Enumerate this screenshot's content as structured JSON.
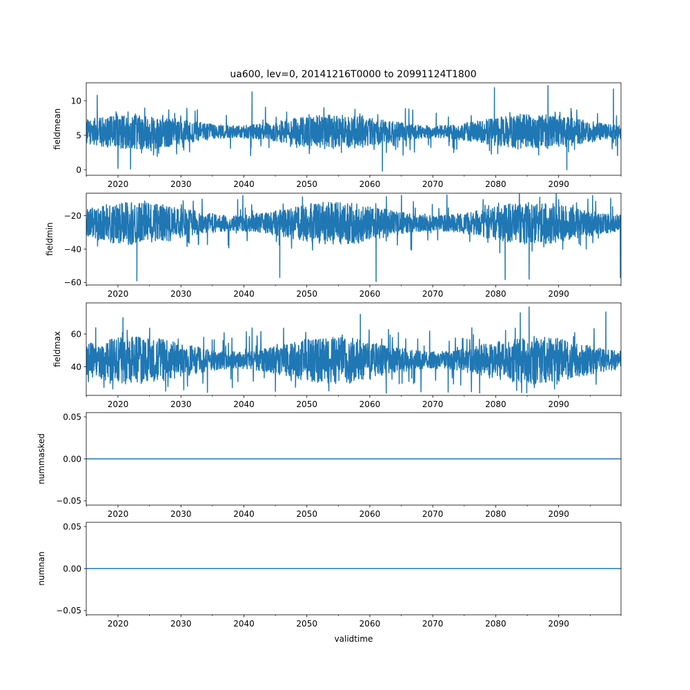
{
  "figure": {
    "title": "ua600, lev=0, 20141216T0000 to 20991124T1800"
  },
  "chart_data": [
    {
      "type": "line",
      "title": "ua600, lev=0, 20141216T0000 to 20991124T1800",
      "xlabel": "",
      "ylabel": "fieldmean",
      "xlim": [
        2014.96,
        2099.9
      ],
      "ylim": [
        -0.8,
        12.6
      ],
      "xticks": [
        2020,
        2030,
        2040,
        2050,
        2060,
        2070,
        2080,
        2090
      ],
      "xtick_labels": [
        "2020",
        "2030",
        "2040",
        "2050",
        "2060",
        "2070",
        "2080",
        "2090"
      ],
      "yticks": [
        0,
        5,
        10
      ],
      "ytick_labels": [
        "0",
        "5",
        "10"
      ],
      "color": "#1f77b4",
      "summary": {
        "typical_low": 3.2,
        "typical_high": 7.8,
        "min": -0.2,
        "max": 12.2
      },
      "extremes": [
        [
          2016.7,
          10.8
        ],
        [
          2020.0,
          0.2
        ],
        [
          2022.0,
          0.1
        ],
        [
          2041.3,
          11.3
        ],
        [
          2062.0,
          -0.2
        ],
        [
          2079.8,
          11.9
        ],
        [
          2088.3,
          12.2
        ],
        [
          2091.3,
          0.0
        ],
        [
          2098.7,
          11.7
        ]
      ],
      "grid": false
    },
    {
      "type": "line",
      "xlabel": "",
      "ylabel": "fieldmin",
      "xlim": [
        2014.96,
        2099.9
      ],
      "ylim": [
        -61.5,
        -6.5
      ],
      "xticks": [
        2020,
        2030,
        2040,
        2050,
        2060,
        2070,
        2080,
        2090
      ],
      "xtick_labels": [
        "2020",
        "2030",
        "2040",
        "2050",
        "2060",
        "2070",
        "2080",
        "2090"
      ],
      "yticks": [
        -60,
        -40,
        -20
      ],
      "ytick_labels": [
        "−60",
        "−40",
        "−20"
      ],
      "color": "#1f77b4",
      "summary": {
        "typical_low": -36,
        "typical_high": -13,
        "min": -59.5,
        "max": -9
      },
      "extremes": [
        [
          2023.0,
          -59.0
        ],
        [
          2045.7,
          -57.0
        ],
        [
          2061.0,
          -59.5
        ],
        [
          2081.5,
          -58.3
        ],
        [
          2085.3,
          -58.0
        ],
        [
          2099.8,
          -57.0
        ],
        [
          2087.0,
          -9.0
        ]
      ],
      "grid": false
    },
    {
      "type": "line",
      "xlabel": "",
      "ylabel": "fieldmax",
      "xlim": [
        2014.96,
        2099.9
      ],
      "ylim": [
        22.5,
        79
      ],
      "xticks": [
        2020,
        2030,
        2040,
        2050,
        2060,
        2070,
        2080,
        2090
      ],
      "xtick_labels": [
        "2020",
        "2030",
        "2040",
        "2050",
        "2060",
        "2070",
        "2080",
        "2090"
      ],
      "yticks": [
        40,
        60
      ],
      "ytick_labels": [
        "40",
        "60"
      ],
      "color": "#1f77b4",
      "summary": {
        "typical_low": 31,
        "typical_high": 57,
        "min": 25,
        "max": 76.5
      },
      "extremes": [
        [
          2045.0,
          25.0
        ],
        [
          2020.8,
          70.0
        ],
        [
          2058.5,
          72.0
        ],
        [
          2083.9,
          73.0
        ],
        [
          2085.3,
          76.5
        ],
        [
          2097.5,
          73.5
        ]
      ],
      "grid": false
    },
    {
      "type": "line",
      "xlabel": "",
      "ylabel": "nummasked",
      "xlim": [
        2014.96,
        2099.9
      ],
      "ylim": [
        -0.055,
        0.055
      ],
      "xticks": [
        2020,
        2030,
        2040,
        2050,
        2060,
        2070,
        2080,
        2090
      ],
      "xtick_labels": [
        "2020",
        "2030",
        "2040",
        "2050",
        "2060",
        "2070",
        "2080",
        "2090"
      ],
      "yticks": [
        -0.05,
        0.0,
        0.05
      ],
      "ytick_labels": [
        "−0.05",
        "0.00",
        "0.05"
      ],
      "color": "#1f77b4",
      "x": [
        2014.96,
        2099.9
      ],
      "y": [
        0.0,
        0.0
      ],
      "grid": false
    },
    {
      "type": "line",
      "xlabel": "validtime",
      "ylabel": "numnan",
      "xlim": [
        2014.96,
        2099.9
      ],
      "ylim": [
        -0.055,
        0.055
      ],
      "xticks": [
        2020,
        2030,
        2040,
        2050,
        2060,
        2070,
        2080,
        2090
      ],
      "xtick_labels": [
        "2020",
        "2030",
        "2040",
        "2050",
        "2060",
        "2070",
        "2080",
        "2090"
      ],
      "yticks": [
        -0.05,
        0.0,
        0.05
      ],
      "ytick_labels": [
        "−0.05",
        "0.00",
        "0.05"
      ],
      "color": "#1f77b4",
      "x": [
        2014.96,
        2099.9
      ],
      "y": [
        0.0,
        0.0
      ],
      "grid": false
    }
  ]
}
